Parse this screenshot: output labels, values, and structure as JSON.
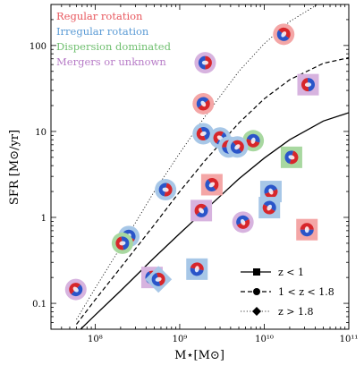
{
  "chart_data": {
    "type": "scatter",
    "xlabel": "M⋆[M⊙]",
    "ylabel": "SFR [M⊙/yr]",
    "xscale": "log",
    "yscale": "log",
    "xlim": [
      30000000.0,
      100000000000.0
    ],
    "ylim": [
      0.05,
      300
    ],
    "x_tick_labels": [
      {
        "value": 100000000.0,
        "label": "10⁸"
      },
      {
        "value": 1000000000.0,
        "label": "10⁹"
      },
      {
        "value": 10000000000.0,
        "label": "10¹⁰"
      },
      {
        "value": 100000000000.0,
        "label": "10¹¹"
      }
    ],
    "y_tick_labels": [
      {
        "value": 0.1,
        "label": "0.1"
      },
      {
        "value": 1,
        "label": "1"
      },
      {
        "value": 10,
        "label": "10"
      },
      {
        "value": 100,
        "label": "100"
      }
    ],
    "type_labels": [
      {
        "text": "Regular rotation",
        "color": "#e8585e"
      },
      {
        "text": "Irregular rotation",
        "color": "#5b9bd5"
      },
      {
        "text": "Dispersion dominated",
        "color": "#6fbf6f"
      },
      {
        "text": "Mergers or unknown",
        "color": "#b77bc7"
      }
    ],
    "series": [
      {
        "name": "z < 1",
        "marker": "square",
        "line": "solid",
        "points": [
          {
            "x": 32000000000.0,
            "y": 0.72,
            "cls": "regular"
          },
          {
            "x": 2400000000.0,
            "y": 2.4,
            "cls": "regular"
          },
          {
            "x": 21000000000.0,
            "y": 5.0,
            "cls": "dispersion"
          },
          {
            "x": 12000000000.0,
            "y": 2.0,
            "cls": "irregular"
          },
          {
            "x": 11500000000.0,
            "y": 1.3,
            "cls": "irregular"
          },
          {
            "x": 33000000000.0,
            "y": 35,
            "cls": "merger"
          },
          {
            "x": 1800000000.0,
            "y": 1.2,
            "cls": "merger"
          },
          {
            "x": 1600000000.0,
            "y": 0.25,
            "cls": "irregular"
          },
          {
            "x": 470000000.0,
            "y": 0.2,
            "cls": "merger"
          }
        ]
      },
      {
        "name": "1 < z < 1.8",
        "marker": "circle",
        "line": "dashed",
        "points": [
          {
            "x": 17000000000.0,
            "y": 135,
            "cls": "regular"
          },
          {
            "x": 2000000000.0,
            "y": 63,
            "cls": "merger"
          },
          {
            "x": 1900000000.0,
            "y": 21,
            "cls": "regular"
          },
          {
            "x": 7400000000.0,
            "y": 7.8,
            "cls": "dispersion"
          },
          {
            "x": 1900000000.0,
            "y": 9.4,
            "cls": "irregular"
          },
          {
            "x": 3000000000.0,
            "y": 8.4,
            "cls": "irregular"
          },
          {
            "x": 3800000000.0,
            "y": 6.6,
            "cls": "irregular"
          },
          {
            "x": 4800000000.0,
            "y": 6.6,
            "cls": "irregular"
          },
          {
            "x": 680000000.0,
            "y": 2.1,
            "cls": "irregular"
          },
          {
            "x": 5600000000.0,
            "y": 0.88,
            "cls": "merger"
          },
          {
            "x": 250000000.0,
            "y": 0.6,
            "cls": "irregular"
          },
          {
            "x": 210000000.0,
            "y": 0.5,
            "cls": "dispersion"
          },
          {
            "x": 59000000.0,
            "y": 0.145,
            "cls": "merger"
          }
        ]
      },
      {
        "name": "z > 1.8",
        "marker": "diamond",
        "line": "dotted",
        "points": [
          {
            "x": 560000000.0,
            "y": 0.19,
            "cls": "irregular"
          }
        ]
      }
    ],
    "curves": [
      {
        "series": "z < 1",
        "line": "solid",
        "x": [
          60000000.0,
          100000000.0,
          200000000.0,
          500000000.0,
          1000000000.0,
          2000000000.0,
          5000000000.0,
          10000000000.0,
          20000000000.0,
          50000000000.0,
          100000000000.0
        ],
        "y": [
          0.045,
          0.073,
          0.14,
          0.34,
          0.65,
          1.22,
          2.8,
          4.9,
          8.0,
          13.2,
          16.5
        ]
      },
      {
        "series": "1 < z < 1.8",
        "line": "dashed",
        "x": [
          60000000.0,
          100000000.0,
          200000000.0,
          500000000.0,
          1000000000.0,
          2000000000.0,
          5000000000.0,
          10000000000.0,
          20000000000.0,
          50000000000.0,
          100000000000.0
        ],
        "y": [
          0.057,
          0.11,
          0.26,
          0.82,
          2.0,
          4.6,
          12.5,
          24,
          40,
          62,
          72
        ]
      },
      {
        "series": "z > 1.8",
        "line": "dotted",
        "x": [
          60000000.0,
          100000000.0,
          200000000.0,
          500000000.0,
          1000000000.0,
          2000000000.0,
          5000000000.0,
          10000000000.0,
          20000000000.0,
          50000000000.0,
          100000000000.0
        ],
        "y": [
          0.065,
          0.15,
          0.45,
          2.0,
          5.6,
          15,
          50,
          105,
          190,
          330,
          450
        ]
      }
    ],
    "legend_position": "bottom-right",
    "grid": false
  }
}
